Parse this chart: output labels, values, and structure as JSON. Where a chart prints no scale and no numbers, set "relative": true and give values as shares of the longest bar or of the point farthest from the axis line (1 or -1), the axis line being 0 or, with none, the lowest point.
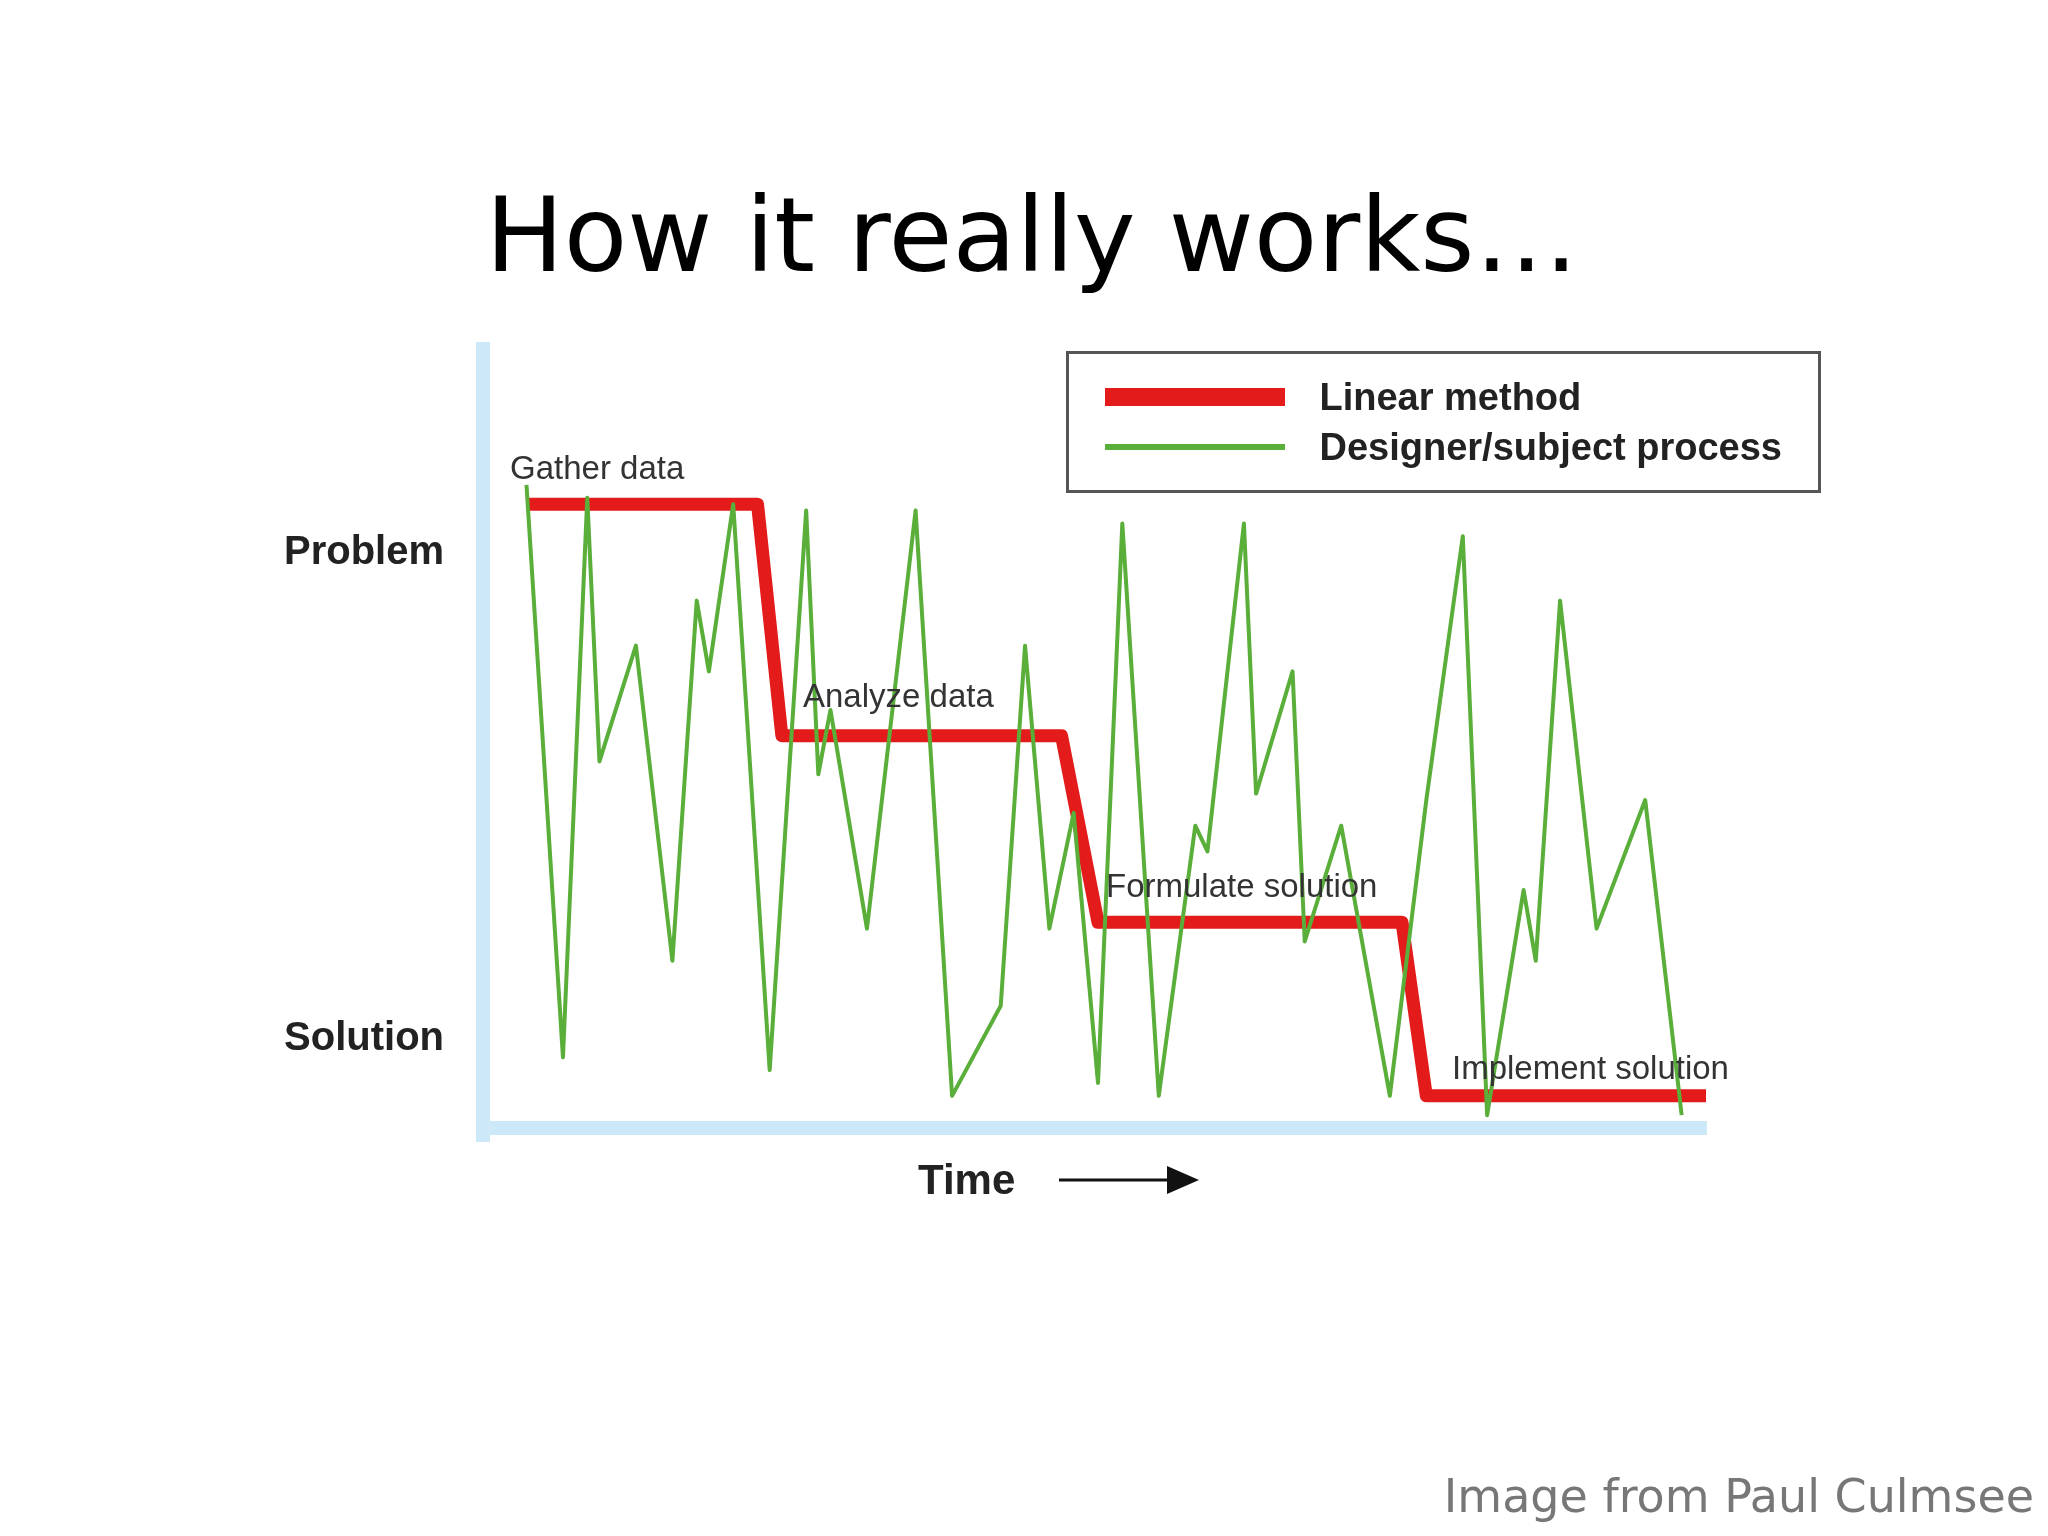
{
  "chart_data": {
    "type": "line",
    "title": "How it really works…",
    "xlabel": "Time",
    "relative": true,
    "grid": false,
    "legend": "top right",
    "marker": "none",
    "line_style": "solid",
    "categories": [
      null,
      null,
      null,
      null,
      null,
      null,
      null,
      null,
      null,
      null,
      null,
      null,
      null,
      null,
      null,
      null,
      null,
      null,
      null,
      null,
      null,
      null,
      null,
      null,
      null,
      null,
      null,
      null,
      null,
      null,
      null,
      null,
      null,
      null,
      null,
      null,
      null,
      null,
      null,
      null,
      null,
      null,
      null,
      null,
      null,
      null,
      null,
      null,
      null,
      null,
      null,
      null,
      null,
      null,
      null,
      null,
      null,
      null,
      null,
      null,
      null,
      null,
      null,
      null,
      null,
      null,
      null,
      null,
      null,
      null,
      null,
      null,
      null,
      null,
      null,
      null,
      null,
      null,
      null,
      null,
      null,
      null,
      null,
      null,
      null,
      null,
      null,
      null,
      null,
      null,
      null,
      null,
      null,
      null,
      null,
      null,
      null,
      null,
      null,
      null,
      null
    ],
    "series": [
      {
        "name": "Linear method",
        "color": "#e31b1b",
        "values": [
          null,
          null,
          null,
          0.97,
          null,
          null,
          null,
          null,
          null,
          null,
          null,
          null,
          null,
          null,
          null,
          null,
          null,
          null,
          null,
          null,
          null,
          null,
          0.97,
          null,
          0.61,
          null,
          null,
          null,
          null,
          null,
          null,
          null,
          null,
          null,
          null,
          null,
          null,
          null,
          null,
          null,
          null,
          null,
          null,
          null,
          null,
          null,
          null,
          0.61,
          null,
          null,
          0.32,
          null,
          null,
          null,
          null,
          null,
          null,
          null,
          null,
          null,
          null,
          null,
          null,
          null,
          null,
          null,
          null,
          null,
          null,
          null,
          null,
          null,
          null,
          null,
          null,
          0.32,
          null,
          0.05,
          null,
          null,
          null,
          null,
          null,
          null,
          null,
          null,
          null,
          null,
          null,
          null,
          null,
          null,
          null,
          null,
          null,
          null,
          null,
          null,
          null,
          null,
          0.05
        ]
      },
      {
        "name": "Designer/subject process",
        "color": "#5aae3a",
        "values": [
          null,
          null,
          null,
          1.0,
          null,
          null,
          0.11,
          null,
          0.98,
          0.57,
          null,
          null,
          0.75,
          null,
          null,
          0.26,
          null,
          0.82,
          0.71,
          null,
          0.97,
          null,
          null,
          0.09,
          null,
          null,
          0.96,
          0.55,
          0.65,
          null,
          null,
          0.31,
          null,
          null,
          null,
          0.96,
          null,
          null,
          0.05,
          null,
          null,
          null,
          0.19,
          null,
          0.75,
          null,
          0.31,
          null,
          0.49,
          null,
          0.07,
          null,
          0.94,
          null,
          null,
          0.05,
          null,
          null,
          0.47,
          0.43,
          null,
          null,
          0.94,
          0.52,
          null,
          null,
          0.71,
          0.29,
          null,
          null,
          0.47,
          null,
          null,
          null,
          0.05,
          null,
          null,
          0.51,
          null,
          null,
          0.92,
          null,
          0.02,
          null,
          null,
          0.37,
          0.26,
          null,
          0.82,
          null,
          null,
          0.31,
          null,
          null,
          null,
          0.51,
          null,
          null,
          0.02,
          null,
          null
        ]
      }
    ],
    "annotations": [
      "Problem",
      "Solution",
      "Gather data",
      "Analyze data",
      "Formulate solution",
      "Implement solution",
      "Image from Paul Culmsee"
    ]
  }
}
